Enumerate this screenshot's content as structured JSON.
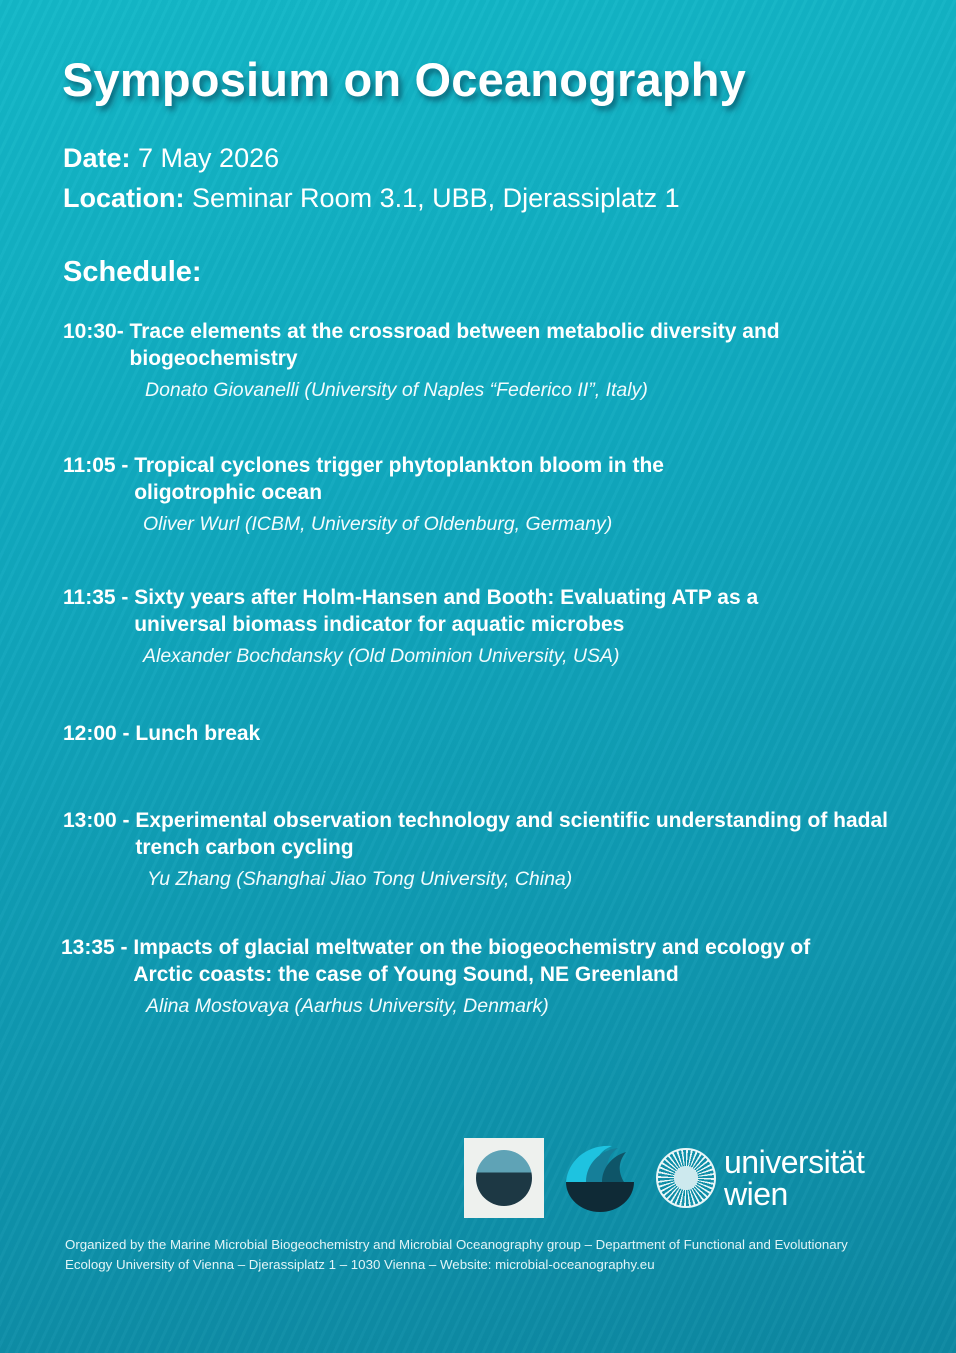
{
  "title": "Symposium on Oceanography",
  "date": {
    "label": "Date:",
    "value": "7 May 2026"
  },
  "location": {
    "label": "Location:",
    "value": "Seminar Room 3.1, UBB, Djerassiplatz 1"
  },
  "schedule_heading": "Schedule:",
  "schedule": [
    {
      "time": "10:30- ",
      "title": "Trace elements at the crossroad between metabolic diversity and biogeochemistry",
      "speaker": "Donato Giovanelli (University of Naples “Federico II”, Italy)"
    },
    {
      "time": "11:05 - ",
      "title": "Tropical cyclones trigger phytoplankton bloom in the oligotrophic ocean",
      "speaker": "Oliver Wurl (ICBM, University of Oldenburg, Germany)"
    },
    {
      "time": "11:35 - ",
      "title": "Sixty years after Holm-Hansen and Booth: Evaluating ATP as a universal biomass indicator for aquatic microbes",
      "speaker": "Alexander Bochdansky (Old Dominion University, USA)"
    },
    {
      "time": "12:00 - ",
      "title": "Lunch break",
      "speaker": ""
    },
    {
      "time": "13:00 - ",
      "title": "Experimental observation technology and scientific understanding of hadal trench carbon cycling",
      "speaker": "Yu Zhang (Shanghai Jiao Tong University, China)"
    },
    {
      "time": "13:35 - ",
      "title": "Impacts of glacial meltwater on the biogeochemistry and ecology of Arctic coasts: the case of Young Sound, NE Greenland",
      "speaker": "Alina Mostovaya  (Aarhus University, Denmark)"
    }
  ],
  "logos": {
    "university": [
      "universität",
      "wien"
    ]
  },
  "footer": "Organized by the Marine Microbial Biogeochemistry and Microbial Oceanography group – Department of Functional and Evolutionary Ecology University of Vienna – Djerassiplatz 1 – 1030 Vienna –  Website: microbial-oceanography.eu",
  "colors": {
    "background_top": "#13b8c8",
    "background_bottom": "#0d88a2",
    "text": "#ffffff"
  }
}
